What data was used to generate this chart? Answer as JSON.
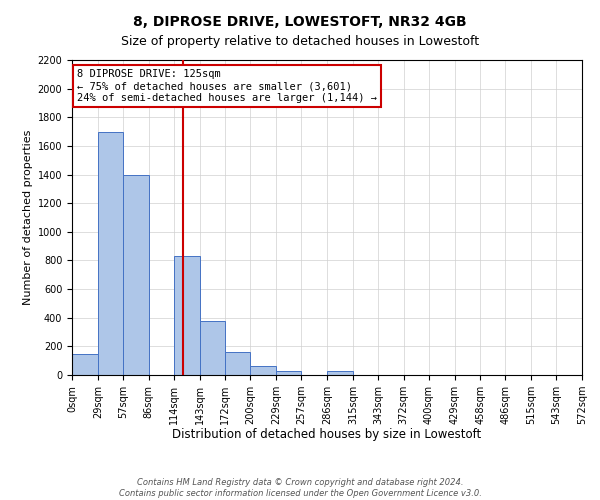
{
  "title": "8, DIPROSE DRIVE, LOWESTOFT, NR32 4GB",
  "subtitle": "Size of property relative to detached houses in Lowestoft",
  "xlabel": "Distribution of detached houses by size in Lowestoft",
  "ylabel": "Number of detached properties",
  "bin_edges": [
    0,
    29,
    57,
    86,
    114,
    143,
    172,
    200,
    229,
    257,
    286,
    315,
    343,
    372,
    400,
    429,
    458,
    486,
    515,
    543,
    572
  ],
  "bin_counts": [
    150,
    1700,
    1400,
    0,
    830,
    380,
    160,
    65,
    30,
    0,
    25,
    0,
    0,
    0,
    0,
    0,
    0,
    0,
    0,
    0
  ],
  "bar_color": "#aec6e8",
  "bar_edge_color": "#4472c4",
  "property_line_x": 125,
  "property_line_color": "#cc0000",
  "ylim": [
    0,
    2200
  ],
  "yticks": [
    0,
    200,
    400,
    600,
    800,
    1000,
    1200,
    1400,
    1600,
    1800,
    2000,
    2200
  ],
  "annotation_title": "8 DIPROSE DRIVE: 125sqm",
  "annotation_line1": "← 75% of detached houses are smaller (3,601)",
  "annotation_line2": "24% of semi-detached houses are larger (1,144) →",
  "annotation_box_color": "#ffffff",
  "annotation_box_edge": "#cc0000",
  "footer_line1": "Contains HM Land Registry data © Crown copyright and database right 2024.",
  "footer_line2": "Contains public sector information licensed under the Open Government Licence v3.0.",
  "background_color": "#ffffff",
  "grid_color": "#d0d0d0",
  "title_fontsize": 10,
  "subtitle_fontsize": 9,
  "tick_label_fontsize": 7,
  "xlabel_fontsize": 8.5,
  "ylabel_fontsize": 8
}
